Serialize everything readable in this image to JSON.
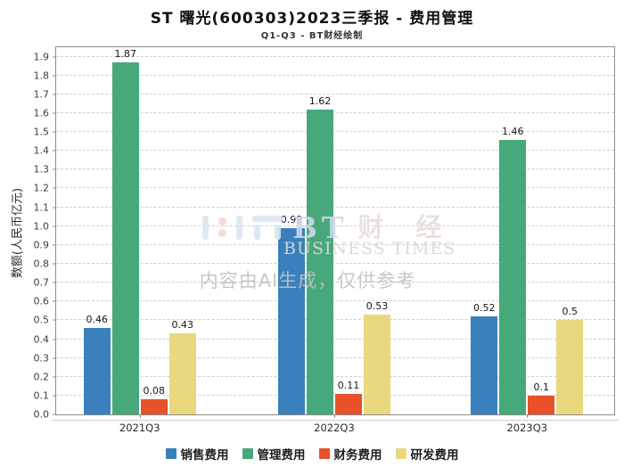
{
  "header": {
    "title": "ST 曙光(600303)2023三季报 - 费用管理",
    "subtitle": "Q1-Q3 - BT财经绘制"
  },
  "chart_data": {
    "type": "bar",
    "title": "ST 曙光(600303)2023三季报 - 费用管理",
    "subtitle": "Q1-Q3 - BT财经绘制",
    "categories": [
      "2021Q3",
      "2022Q3",
      "2023Q3"
    ],
    "series": [
      {
        "name": "销售费用",
        "color": "#3a80bc",
        "values": [
          0.46,
          0.99,
          0.52
        ]
      },
      {
        "name": "管理费用",
        "color": "#47a87a",
        "values": [
          1.87,
          1.62,
          1.46
        ]
      },
      {
        "name": "财务费用",
        "color": "#e8502a",
        "values": [
          0.08,
          0.11,
          0.1
        ]
      },
      {
        "name": "研发费用",
        "color": "#ead87e",
        "values": [
          0.43,
          0.53,
          0.5
        ]
      }
    ],
    "xlabel": "",
    "ylabel": "数额(人民币亿元)",
    "ylim": [
      0,
      1.95
    ],
    "ytick_step": 0.1,
    "ytick_max": 1.9,
    "grid": true,
    "legend_position": "bottom",
    "group_centers_pct": [
      14.97,
      49.84,
      84.39
    ]
  },
  "watermark": {
    "brand_bt": "BT",
    "brand_cn": "财 经",
    "brand_en": "BUSINESS TIMES",
    "disclaimer": "内容由AI生成，仅供参考"
  },
  "colors": {
    "grid": "#cfcfcf",
    "plot_border": "#8c8c8c",
    "tick_text": "#3d3d3d",
    "label_text": "#161616"
  }
}
